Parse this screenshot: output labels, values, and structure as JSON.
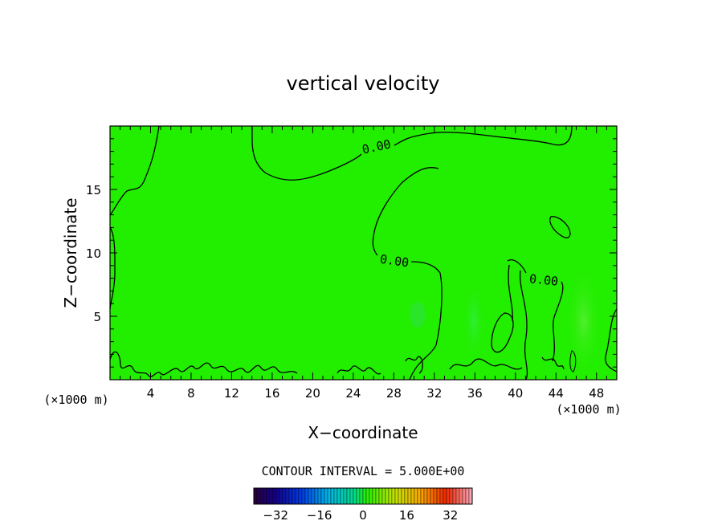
{
  "chart_data": {
    "type": "heatmap",
    "title": "vertical velocity",
    "xlabel": "X−coordinate",
    "ylabel": "Z−coordinate",
    "x_unit": "(×1000 m)",
    "xlim": [
      0,
      50
    ],
    "ylim": [
      0,
      20
    ],
    "x_ticks": [
      4,
      8,
      12,
      16,
      20,
      24,
      28,
      32,
      36,
      40,
      44,
      48
    ],
    "y_ticks": [
      5,
      10,
      15
    ],
    "contour_interval_text": "CONTOUR INTERVAL = 5.000E+00",
    "colorbar": {
      "range": [
        -40,
        40
      ],
      "ticks": [
        -32,
        -16,
        0,
        16,
        32
      ],
      "tick_labels": [
        "−32",
        "−16",
        "0",
        "16",
        "32"
      ]
    },
    "contour_labels": [
      {
        "text": "0.00",
        "x": 26.5,
        "z": 18.2
      },
      {
        "text": "0.00",
        "x": 28.2,
        "z": 9.4
      },
      {
        "text": "0.00",
        "x": 42.5,
        "z": 7.9
      }
    ],
    "field_description_values": {
      "background_value": 0,
      "max_value_near": 5,
      "min_value_near": -5
    }
  }
}
